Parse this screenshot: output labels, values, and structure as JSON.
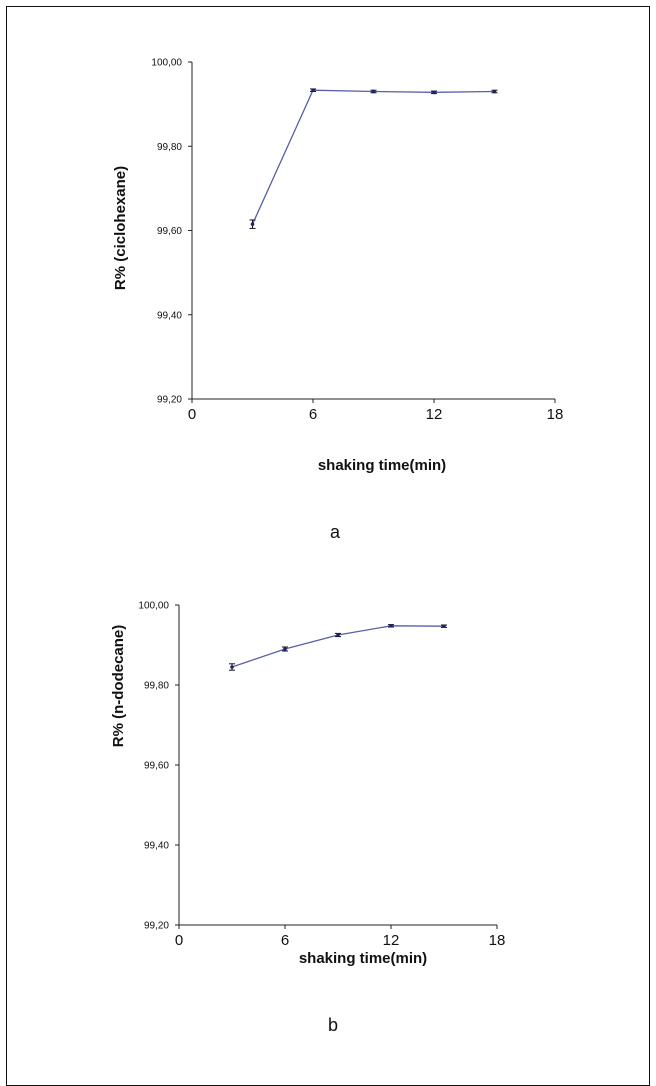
{
  "chart_data": [
    {
      "type": "line",
      "panel_label": "a",
      "xlabel": "shaking time(min)",
      "ylabel": "R%  (ciclohexane)",
      "xlim": [
        0,
        18
      ],
      "ylim": [
        99.2,
        100.0
      ],
      "x_ticks": [
        "0",
        "6",
        "12",
        "18"
      ],
      "y_ticks": [
        "99,20",
        "99,40",
        "99,60",
        "99,80",
        "100,00"
      ],
      "series": [
        {
          "color": "#5a5fa8",
          "x": [
            3,
            6,
            9,
            12,
            15
          ],
          "y": [
            99.615,
            99.933,
            99.93,
            99.928,
            99.93
          ],
          "err": [
            0.01,
            0.003,
            0.003,
            0.003,
            0.003
          ]
        }
      ],
      "grid": false
    },
    {
      "type": "line",
      "panel_label": "b",
      "xlabel": "shaking time(min)",
      "ylabel": "R% (n-dodecane)",
      "xlim": [
        0,
        18
      ],
      "ylim": [
        99.2,
        100.0
      ],
      "x_ticks": [
        "0",
        "6",
        "12",
        "18"
      ],
      "y_ticks": [
        "99,20",
        "99,40",
        "99,60",
        "99,80",
        "100,00"
      ],
      "series": [
        {
          "color": "#5a5fa8",
          "x": [
            3,
            6,
            9,
            12,
            15
          ],
          "y": [
            99.845,
            99.89,
            99.925,
            99.948,
            99.947
          ],
          "err": [
            0.008,
            0.005,
            0.004,
            0.003,
            0.003
          ]
        }
      ],
      "grid": false
    }
  ]
}
